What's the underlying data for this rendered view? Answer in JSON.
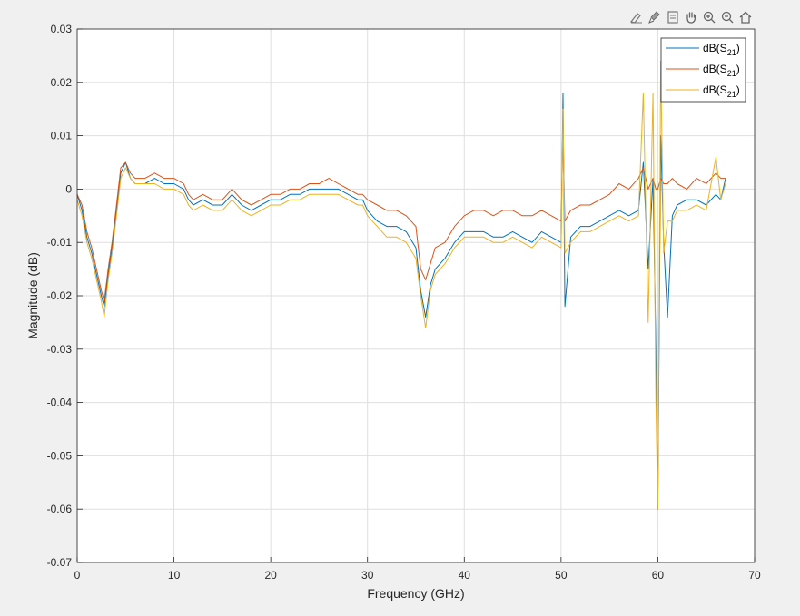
{
  "toolbar": {
    "icons": [
      "data-tips-icon",
      "brush-icon",
      "restore-view-icon",
      "pan-hand-icon",
      "zoom-in-icon",
      "zoom-out-icon",
      "home-icon"
    ]
  },
  "chart_data": {
    "type": "line",
    "title": "",
    "xlabel": "Frequency (GHz)",
    "ylabel": "Magnitude (dB)",
    "xlim": [
      0,
      70
    ],
    "ylim": [
      -0.07,
      0.03
    ],
    "xticks": [
      "0",
      "10",
      "20",
      "30",
      "40",
      "50",
      "60",
      "70"
    ],
    "yticks": [
      "0.03",
      "0.02",
      "0.01",
      "0",
      "-0.01",
      "-0.02",
      "-0.03",
      "-0.04",
      "-0.05",
      "-0.06",
      "-0.07"
    ],
    "grid": true,
    "legend_position": "top-right",
    "colors": [
      "#0072bd",
      "#d95319",
      "#edb120"
    ],
    "series": [
      {
        "name": "dB(S21)",
        "x": [
          0,
          0.5,
          1,
          1.5,
          2,
          2.5,
          2.8,
          3.2,
          3.6,
          4,
          4.5,
          5,
          5.5,
          6,
          7,
          8,
          9,
          10,
          11,
          11.5,
          12,
          13,
          14,
          15,
          16,
          17,
          18,
          19,
          20,
          21,
          22,
          23,
          24,
          25,
          26,
          27,
          28,
          29,
          29.5,
          30,
          31,
          32,
          33,
          34,
          35,
          35.5,
          36,
          36.5,
          37,
          38,
          39,
          40,
          41,
          42,
          43,
          44,
          45,
          46,
          47,
          48,
          49,
          50,
          50.2,
          50.4,
          51,
          52,
          53,
          54,
          55,
          56,
          57,
          58,
          58.5,
          59,
          59.5,
          59.8,
          60,
          60.3,
          60.6,
          61,
          61.5,
          62,
          63,
          64,
          65,
          66,
          66.5,
          67
        ],
        "y": [
          -0.001,
          -0.004,
          -0.009,
          -0.012,
          -0.016,
          -0.02,
          -0.022,
          -0.016,
          -0.011,
          -0.005,
          0.003,
          0.005,
          0.002,
          0.001,
          0.001,
          0.002,
          0.001,
          0.001,
          0.0,
          -0.002,
          -0.003,
          -0.002,
          -0.003,
          -0.003,
          -0.001,
          -0.003,
          -0.004,
          -0.003,
          -0.002,
          -0.002,
          -0.001,
          -0.001,
          0.0,
          0.0,
          0.0,
          0.0,
          -0.001,
          -0.002,
          -0.002,
          -0.004,
          -0.006,
          -0.007,
          -0.007,
          -0.008,
          -0.011,
          -0.019,
          -0.024,
          -0.018,
          -0.015,
          -0.013,
          -0.01,
          -0.008,
          -0.008,
          -0.008,
          -0.009,
          -0.009,
          -0.008,
          -0.009,
          -0.01,
          -0.008,
          -0.009,
          -0.01,
          0.018,
          -0.022,
          -0.009,
          -0.007,
          -0.007,
          -0.006,
          -0.005,
          -0.004,
          -0.005,
          -0.004,
          0.005,
          -0.015,
          0.002,
          -0.03,
          -0.06,
          0.01,
          -0.01,
          -0.024,
          -0.005,
          -0.003,
          -0.002,
          -0.002,
          -0.003,
          -0.001,
          -0.002,
          0.002
        ]
      },
      {
        "name": "dB(S21)",
        "x": [
          0,
          0.5,
          1,
          1.5,
          2,
          2.5,
          2.8,
          3.2,
          3.6,
          4,
          4.5,
          5,
          5.5,
          6,
          7,
          8,
          9,
          10,
          11,
          11.5,
          12,
          13,
          14,
          15,
          16,
          17,
          18,
          19,
          20,
          21,
          22,
          23,
          24,
          25,
          26,
          27,
          28,
          29,
          29.5,
          30,
          31,
          32,
          33,
          34,
          35,
          35.5,
          36,
          36.5,
          37,
          38,
          39,
          40,
          41,
          42,
          43,
          44,
          45,
          46,
          47,
          48,
          49,
          50,
          50.2,
          50.4,
          51,
          52,
          53,
          54,
          55,
          56,
          57,
          58,
          58.5,
          59,
          59.5,
          59.8,
          60,
          60.3,
          60.6,
          61,
          61.5,
          62,
          63,
          64,
          65,
          66,
          66.5,
          67
        ],
        "y": [
          -0.001,
          -0.003,
          -0.008,
          -0.011,
          -0.015,
          -0.019,
          -0.021,
          -0.015,
          -0.01,
          -0.004,
          0.004,
          0.005,
          0.003,
          0.002,
          0.002,
          0.003,
          0.002,
          0.002,
          0.001,
          -0.001,
          -0.002,
          -0.001,
          -0.002,
          -0.002,
          0.0,
          -0.002,
          -0.003,
          -0.002,
          -0.001,
          -0.001,
          0.0,
          0.0,
          0.001,
          0.001,
          0.002,
          0.001,
          0.0,
          -0.001,
          -0.001,
          -0.002,
          -0.003,
          -0.004,
          -0.004,
          -0.005,
          -0.007,
          -0.015,
          -0.017,
          -0.014,
          -0.011,
          -0.01,
          -0.007,
          -0.005,
          -0.004,
          -0.004,
          -0.005,
          -0.004,
          -0.004,
          -0.005,
          -0.005,
          -0.004,
          -0.005,
          -0.006,
          0.01,
          -0.006,
          -0.004,
          -0.003,
          -0.003,
          -0.002,
          -0.001,
          0.001,
          0.0,
          0.002,
          0.004,
          0.0,
          0.002,
          0.0,
          0.0,
          0.002,
          0.001,
          0.001,
          0.002,
          0.001,
          0.0,
          0.002,
          0.001,
          0.003,
          0.002,
          0.002
        ]
      },
      {
        "name": "dB(S21)",
        "x": [
          0,
          0.5,
          1,
          1.5,
          2,
          2.5,
          2.8,
          3.2,
          3.6,
          4,
          4.5,
          5,
          5.5,
          6,
          7,
          8,
          9,
          10,
          11,
          11.5,
          12,
          13,
          14,
          15,
          16,
          17,
          18,
          19,
          20,
          21,
          22,
          23,
          24,
          25,
          26,
          27,
          28,
          29,
          29.5,
          30,
          31,
          32,
          33,
          34,
          35,
          35.5,
          36,
          36.5,
          37,
          38,
          39,
          40,
          41,
          42,
          43,
          44,
          45,
          46,
          47,
          48,
          49,
          50,
          50.2,
          50.4,
          51,
          52,
          53,
          54,
          55,
          56,
          57,
          58,
          58.5,
          59,
          59.5,
          59.8,
          60,
          60.3,
          60.6,
          61,
          61.5,
          62,
          63,
          64,
          65,
          66,
          66.5,
          67
        ],
        "y": [
          -0.002,
          -0.005,
          -0.01,
          -0.013,
          -0.017,
          -0.021,
          -0.024,
          -0.017,
          -0.012,
          -0.006,
          0.002,
          0.004,
          0.002,
          0.001,
          0.001,
          0.001,
          0.0,
          0.0,
          -0.001,
          -0.003,
          -0.004,
          -0.003,
          -0.004,
          -0.004,
          -0.002,
          -0.004,
          -0.005,
          -0.004,
          -0.003,
          -0.003,
          -0.002,
          -0.002,
          -0.001,
          -0.001,
          -0.001,
          -0.001,
          -0.002,
          -0.003,
          -0.003,
          -0.005,
          -0.007,
          -0.009,
          -0.009,
          -0.01,
          -0.013,
          -0.02,
          -0.026,
          -0.019,
          -0.016,
          -0.014,
          -0.011,
          -0.009,
          -0.009,
          -0.009,
          -0.01,
          -0.01,
          -0.009,
          -0.01,
          -0.011,
          -0.009,
          -0.01,
          -0.011,
          0.015,
          -0.012,
          -0.01,
          -0.008,
          -0.008,
          -0.007,
          -0.006,
          -0.005,
          -0.006,
          -0.005,
          0.018,
          -0.025,
          0.018,
          -0.04,
          -0.06,
          0.024,
          -0.012,
          -0.006,
          -0.006,
          -0.004,
          -0.004,
          -0.003,
          -0.004,
          0.006,
          -0.002,
          0.001
        ]
      }
    ]
  }
}
